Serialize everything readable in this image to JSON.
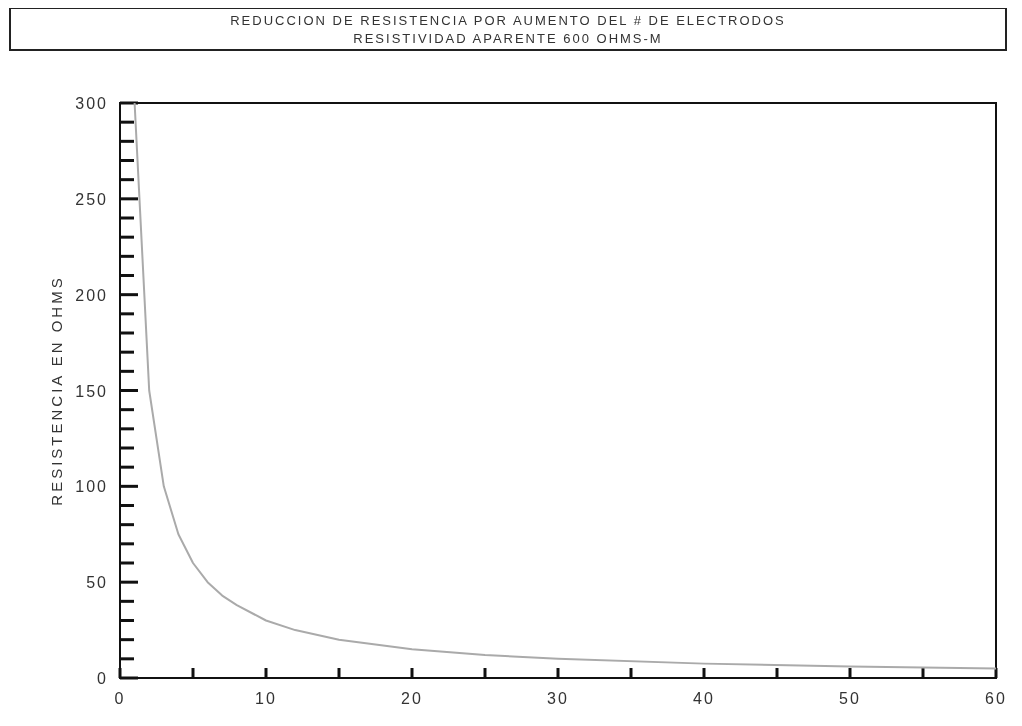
{
  "chart_data": {
    "type": "line",
    "title": "REDUCCION DE RESISTENCIA POR AUMENTO DEL # DE ELECTRODOS",
    "subtitle": "RESISTIVIDAD APARENTE 600 OHMS-M",
    "ylabel": "RESISTENCIA EN OHMS",
    "x": [
      1,
      2,
      3,
      4,
      5,
      6,
      7,
      8,
      10,
      12,
      15,
      20,
      25,
      30,
      40,
      50,
      60
    ],
    "series": [
      {
        "color": "#aaaaaa",
        "values": [
          300,
          150,
          100,
          75,
          60,
          50,
          43,
          38,
          30,
          25,
          20,
          15,
          12,
          10,
          7.5,
          6,
          5
        ]
      }
    ],
    "xlim": [
      0,
      60
    ],
    "ylim": [
      0,
      300
    ],
    "xticks": [
      0,
      {
        "value": 5,
        "label": null
      },
      10,
      {
        "value": 15,
        "label": null
      },
      20,
      {
        "value": 25,
        "label": null
      },
      30,
      {
        "value": 35,
        "label": null
      },
      40,
      {
        "value": 45,
        "label": null
      },
      50,
      {
        "value": 55,
        "label": null
      },
      60
    ],
    "yticks": [
      0,
      {
        "value": 10,
        "label": null
      },
      {
        "value": 20,
        "label": null
      },
      {
        "value": 30,
        "label": null
      },
      {
        "value": 40,
        "label": null
      },
      50,
      {
        "value": 60,
        "label": null
      },
      {
        "value": 70,
        "label": null
      },
      {
        "value": 80,
        "label": null
      },
      {
        "value": 90,
        "label": null
      },
      100,
      {
        "value": 110,
        "label": null
      },
      {
        "value": 120,
        "label": null
      },
      {
        "value": 130,
        "label": null
      },
      {
        "value": 140,
        "label": null
      },
      150,
      {
        "value": 160,
        "label": null
      },
      {
        "value": 170,
        "label": null
      },
      {
        "value": 180,
        "label": null
      },
      {
        "value": 190,
        "label": null
      },
      200,
      {
        "value": 210,
        "label": null
      },
      {
        "value": 220,
        "label": null
      },
      {
        "value": 230,
        "label": null
      },
      {
        "value": 240,
        "label": null
      },
      250,
      {
        "value": 260,
        "label": null
      },
      {
        "value": 270,
        "label": null
      },
      {
        "value": 280,
        "label": null
      },
      {
        "value": 290,
        "label": null
      },
      300
    ],
    "grid": false,
    "marker": "none",
    "line_style": "solid"
  }
}
